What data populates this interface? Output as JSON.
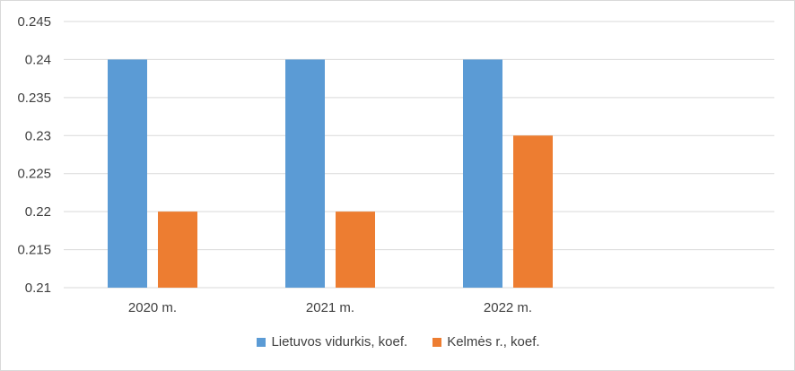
{
  "chart_data": {
    "type": "bar",
    "title": "",
    "xlabel": "",
    "ylabel": "",
    "categories": [
      "2020 m.",
      "2021 m.",
      "2022 m.",
      ""
    ],
    "series": [
      {
        "name": "Lietuvos vidurkis, koef.",
        "color": "#5b9bd5",
        "values": [
          0.24,
          0.24,
          0.24,
          null
        ]
      },
      {
        "name": "Kelmės r., koef.",
        "color": "#ed7d31",
        "values": [
          0.22,
          0.22,
          0.23,
          null
        ]
      }
    ],
    "ylim": [
      0.21,
      0.245
    ],
    "yticks": [
      "0.21",
      "0.215",
      "0.22",
      "0.225",
      "0.23",
      "0.235",
      "0.24",
      "0.245"
    ],
    "grid": true,
    "legend_position": "bottom"
  }
}
